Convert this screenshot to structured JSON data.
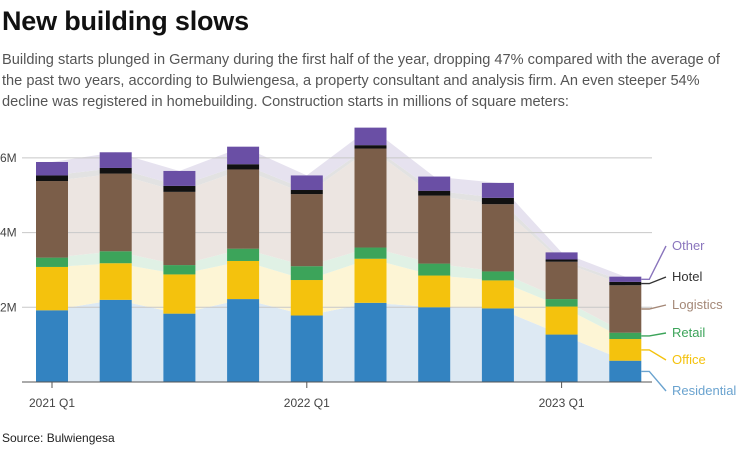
{
  "header": {
    "title": "New building slows",
    "subtitle": "Building starts plunged in Germany during the first half of the year, dropping 47% compared with the average of the past two years, according to Bulwiengesa, a property consultant and analysis firm. An even steeper 54% decline was registered in homebuilding. Construction starts in millions of square meters:"
  },
  "footer": {
    "source": "Source: Bulwiengesa"
  },
  "chart_data": {
    "type": "bar",
    "stacked": true,
    "unit": "millions of square meters",
    "categories": [
      "2021 Q1",
      "2021 Q2",
      "2021 Q3",
      "2021 Q4",
      "2022 Q1",
      "2022 Q2",
      "2022 Q3",
      "2022 Q4",
      "2023 Q1",
      "2023 Q2"
    ],
    "x_tick_labels": [
      {
        "label": "2021 Q1",
        "index": 0
      },
      {
        "label": "2022 Q1",
        "index": 4
      },
      {
        "label": "2023 Q1",
        "index": 8
      }
    ],
    "y_tick_labels": [
      {
        "label": "2M",
        "value": 2
      },
      {
        "label": "4M",
        "value": 4
      },
      {
        "label": "6M",
        "value": 6
      }
    ],
    "ylim": [
      0,
      6.8
    ],
    "grid": true,
    "legend_placement": "right",
    "series": [
      {
        "name": "Residential",
        "color": "#3383c1",
        "band_color": "#dde9f3",
        "legend_color": "#6aa3cf",
        "values": [
          1.92,
          2.2,
          1.83,
          2.22,
          1.78,
          2.12,
          2.0,
          1.97,
          1.27,
          0.57
        ]
      },
      {
        "name": "Office",
        "color": "#f4c20d",
        "band_color": "#fdf5d5",
        "legend_color": "#f4c20d",
        "values": [
          1.16,
          0.98,
          1.05,
          1.02,
          0.95,
          1.18,
          0.85,
          0.75,
          0.75,
          0.58
        ]
      },
      {
        "name": "Retail",
        "color": "#3ca45a",
        "band_color": "#e0f1e5",
        "legend_color": "#3ca45a",
        "values": [
          0.25,
          0.32,
          0.25,
          0.33,
          0.37,
          0.3,
          0.32,
          0.24,
          0.2,
          0.17
        ]
      },
      {
        "name": "Logistics",
        "color": "#7b5e49",
        "band_color": "#ece5e1",
        "legend_color": "#a48877",
        "values": [
          2.05,
          2.08,
          1.96,
          2.12,
          1.93,
          2.65,
          1.82,
          1.8,
          1.0,
          1.27
        ]
      },
      {
        "name": "Hotel",
        "color": "#111111",
        "band_color": "#e2e2e2",
        "legend_color": "#333333",
        "values": [
          0.15,
          0.15,
          0.16,
          0.14,
          0.11,
          0.09,
          0.13,
          0.17,
          0.06,
          0.09
        ]
      },
      {
        "name": "Other",
        "color": "#6a4fa5",
        "band_color": "#e6e2ef",
        "legend_color": "#8a75bd",
        "values": [
          0.36,
          0.42,
          0.4,
          0.47,
          0.39,
          0.47,
          0.38,
          0.4,
          0.19,
          0.14
        ]
      }
    ]
  }
}
